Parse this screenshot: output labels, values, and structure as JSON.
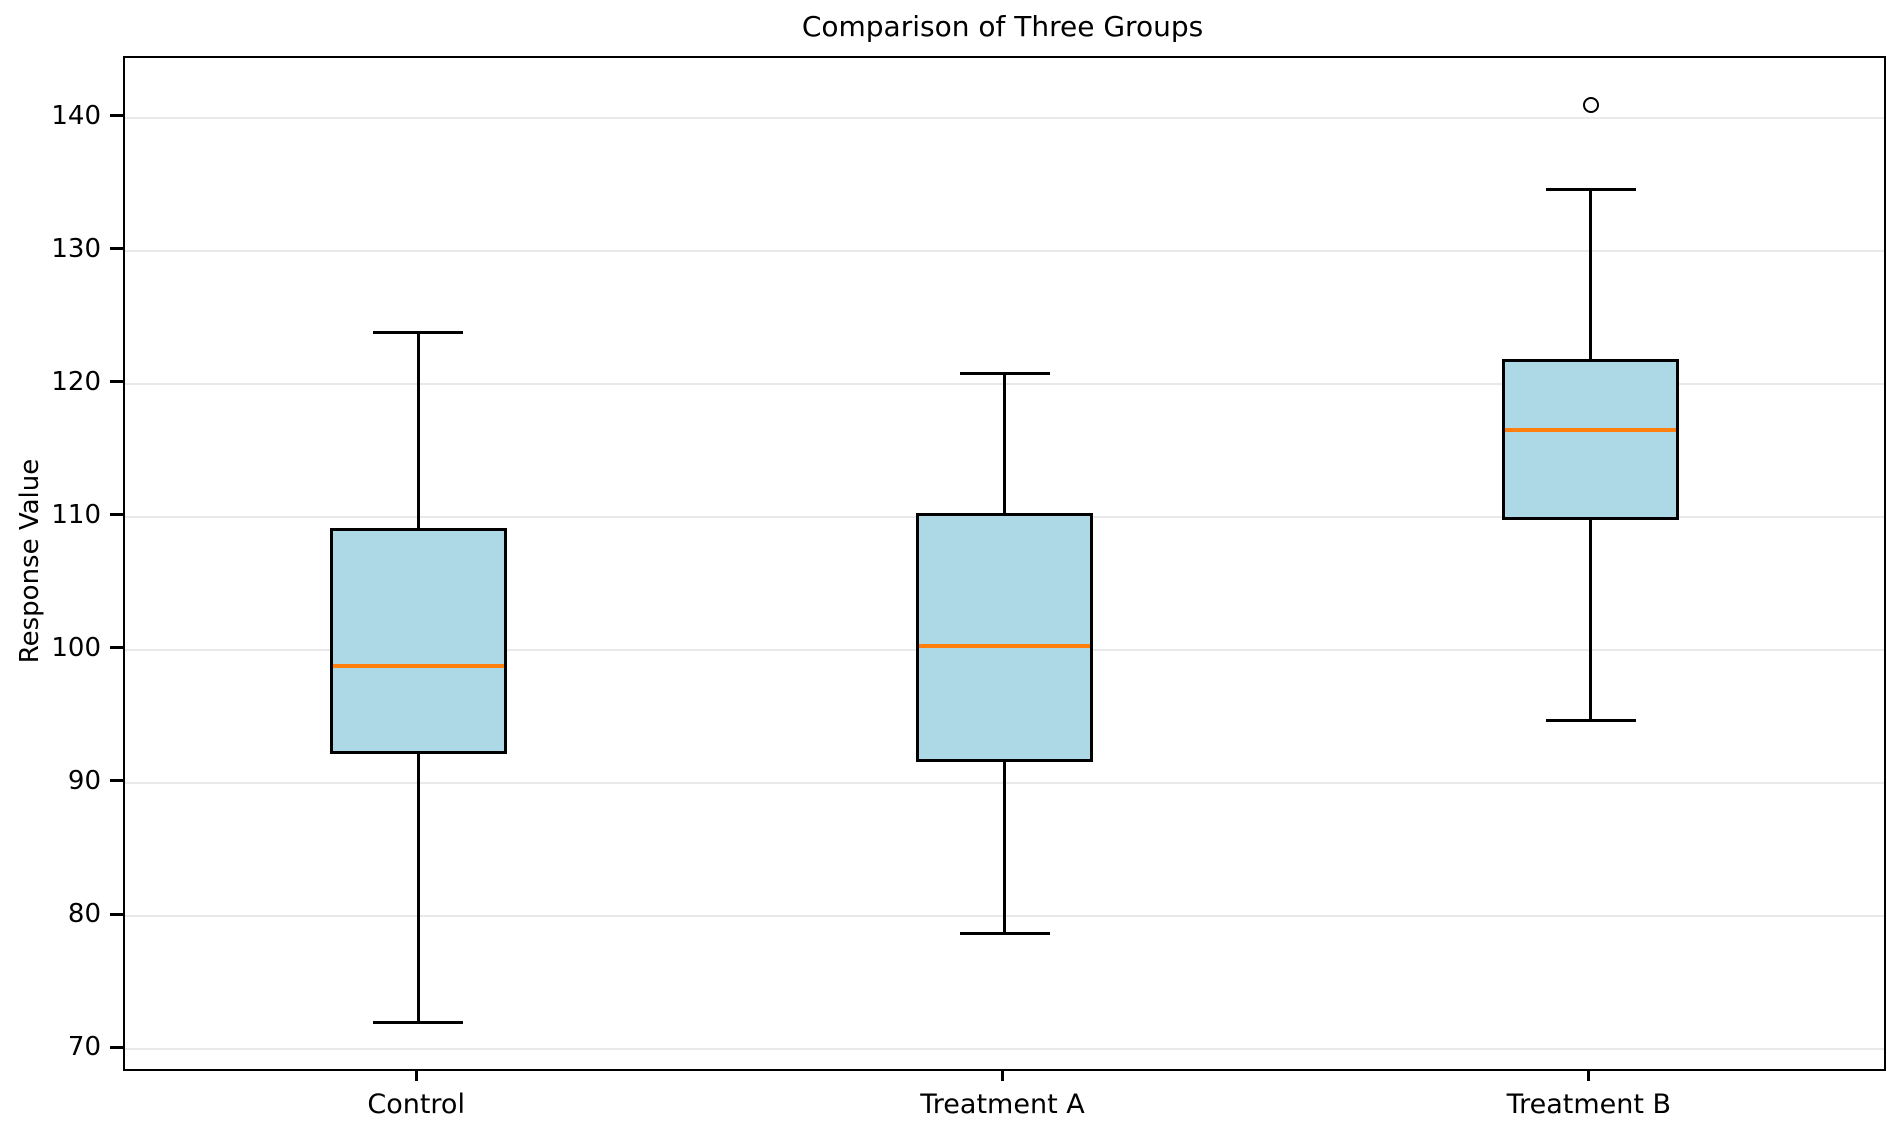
{
  "title": "Comparison of Three Groups",
  "chart_data": {
    "type": "boxplot",
    "title": "Comparison of Three Groups",
    "xlabel": "",
    "ylabel": "Response Value",
    "categories": [
      "Control",
      "Treatment A",
      "Treatment B"
    ],
    "groups": [
      {
        "label": "Control",
        "whisker_low": 72.0,
        "q1": 92.2,
        "median": 98.8,
        "q3": 109.2,
        "whisker_high": 123.9,
        "outliers": []
      },
      {
        "label": "Treatment A",
        "whisker_low": 78.7,
        "q1": 91.6,
        "median": 100.3,
        "q3": 110.3,
        "whisker_high": 120.8,
        "outliers": []
      },
      {
        "label": "Treatment B",
        "whisker_low": 94.7,
        "q1": 109.8,
        "median": 116.5,
        "q3": 121.9,
        "whisker_high": 134.6,
        "outliers": [
          141.0
        ]
      }
    ],
    "yticks": [
      70,
      80,
      90,
      100,
      110,
      120,
      130,
      140
    ],
    "ylim": [
      68.5,
      144.5
    ],
    "grid": "horizontal",
    "legend": "none",
    "colors": {
      "box_fill": "#ADD8E6",
      "box_edge": "#000000",
      "median": "#FF7F0E",
      "whisker": "#000000",
      "grid": "#E9E9E9",
      "background": "#FFFFFF",
      "text": "#000000"
    }
  }
}
